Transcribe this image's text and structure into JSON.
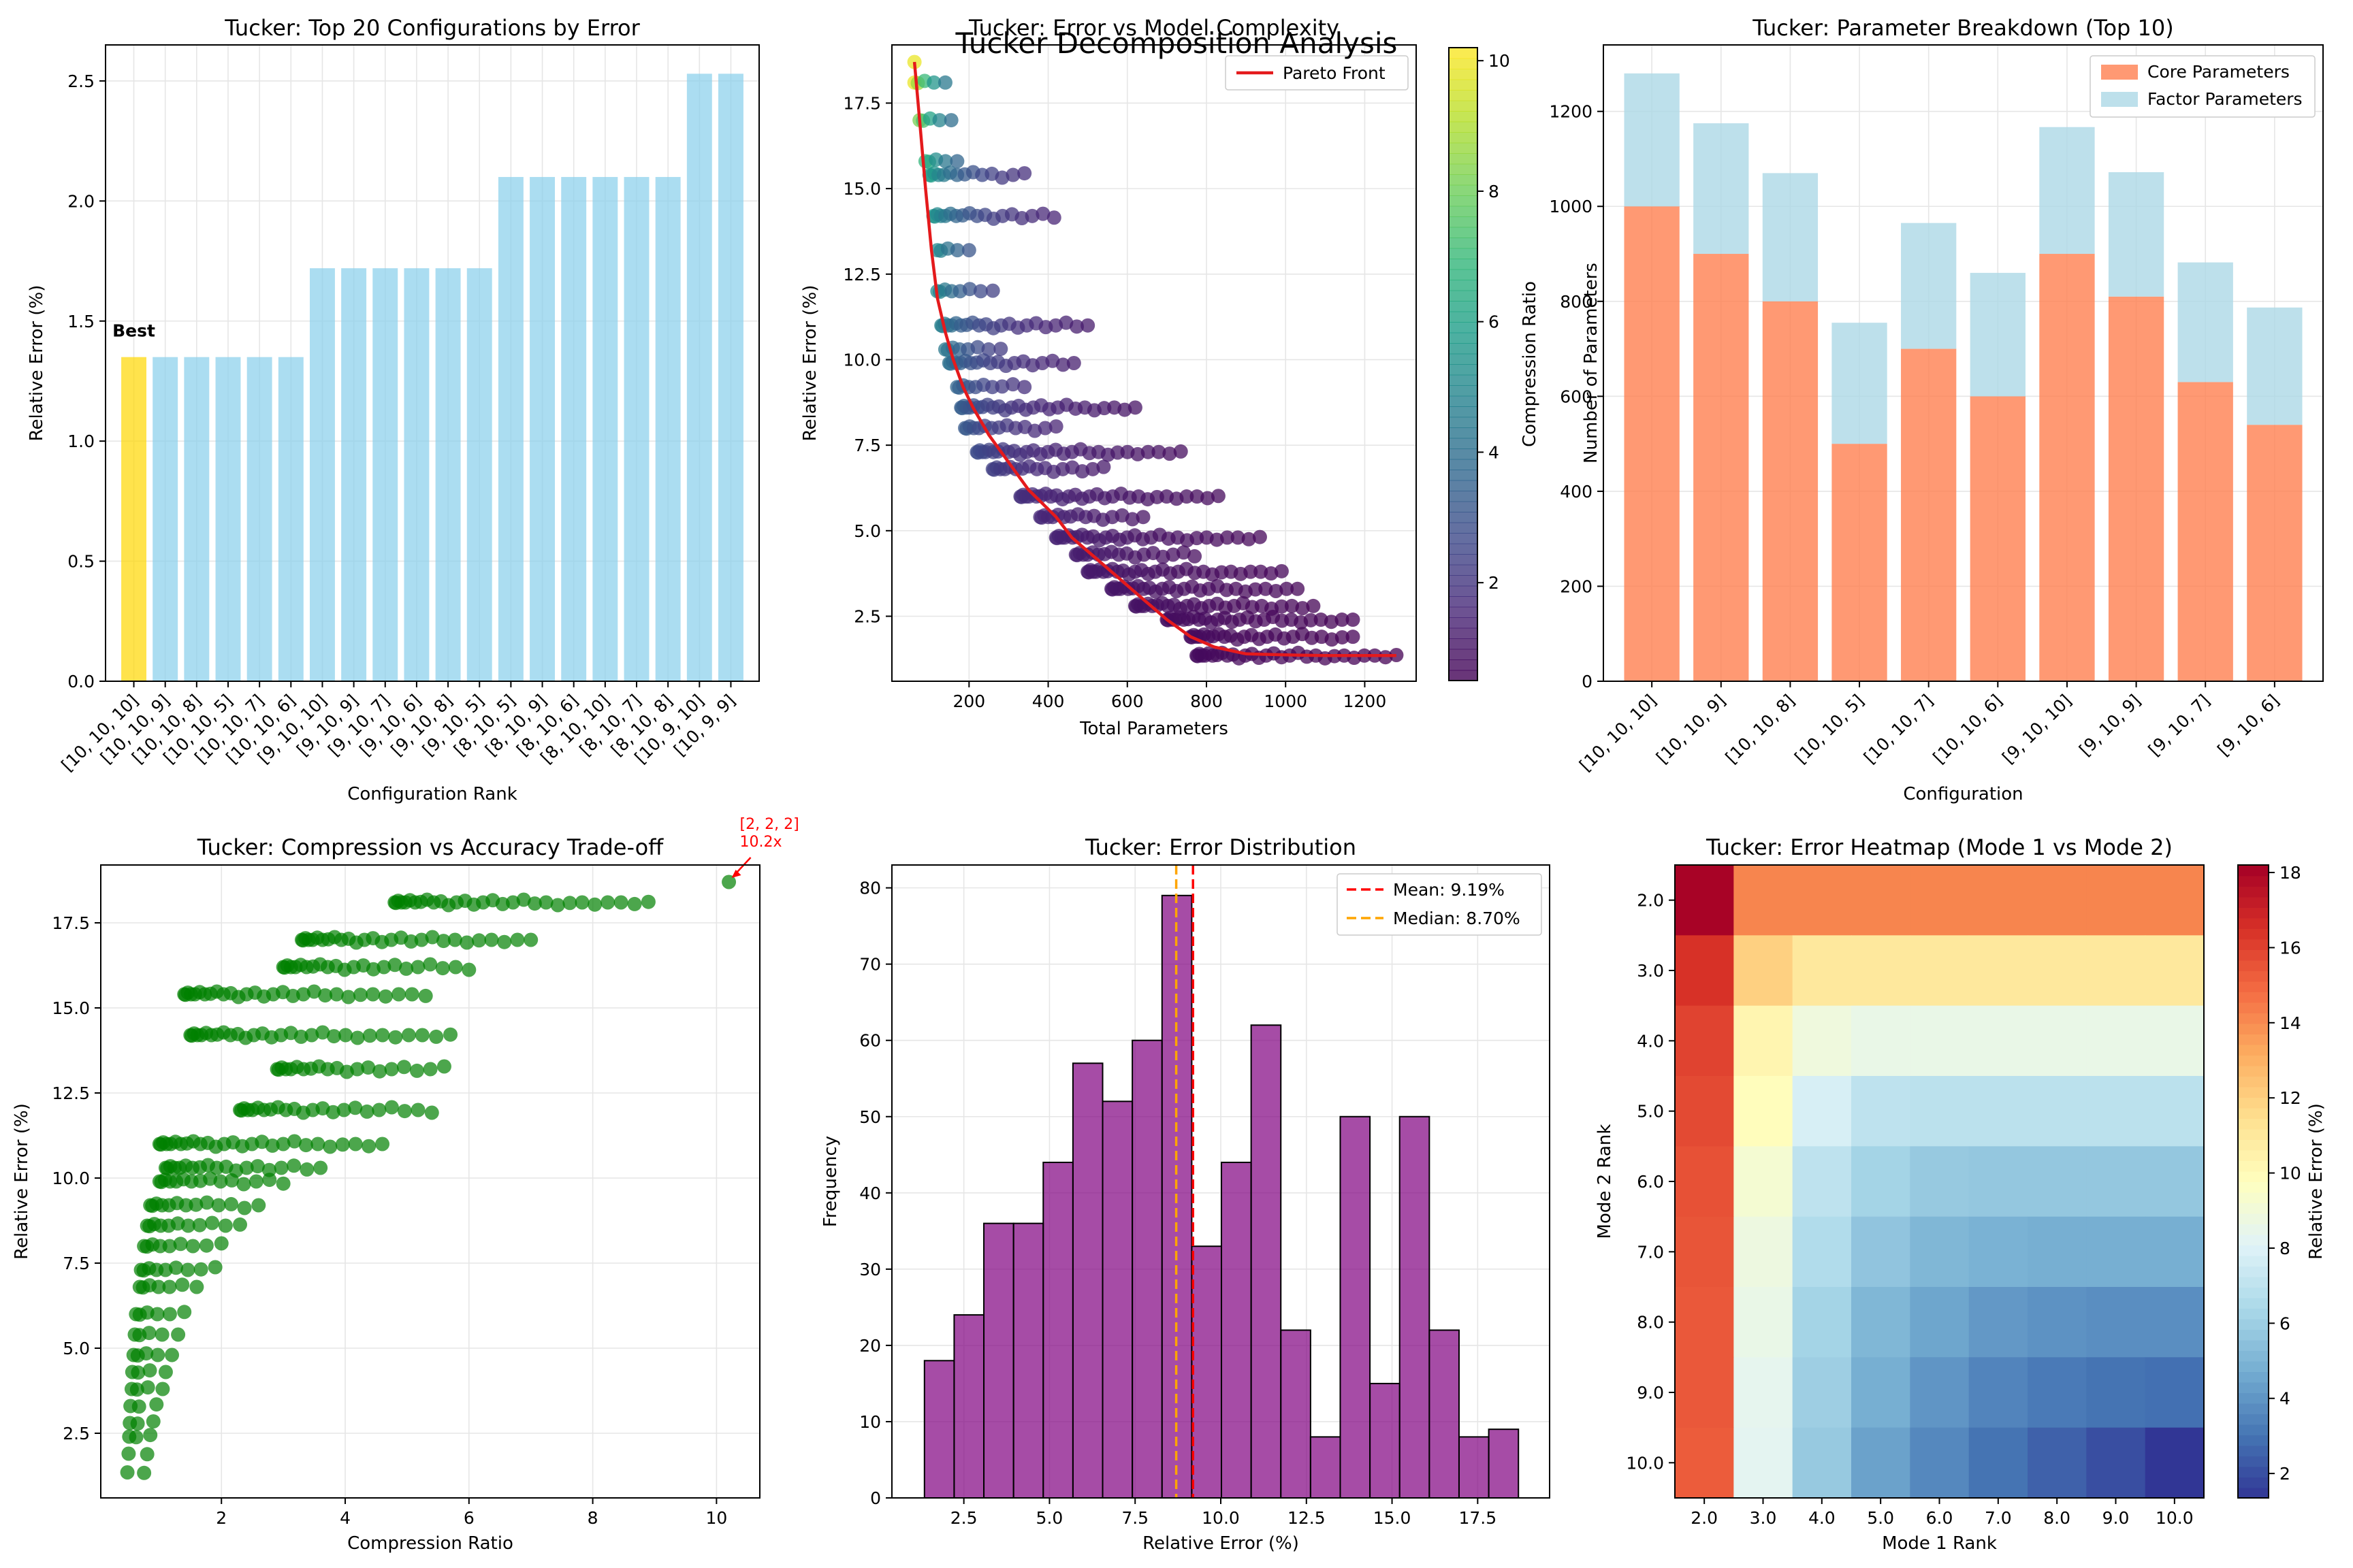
{
  "figure": {
    "suptitle": "Tucker Decomposition Analysis"
  },
  "colors": {
    "sky": "#87ceeb",
    "gold": "#ffd700",
    "red": "#ff0000",
    "orange": "#ffa500",
    "coral": "#ff7f50",
    "lightblue": "#add8e6",
    "green": "#008000",
    "purple": "#800080",
    "grid": "#e6e6e6"
  },
  "chart_data": [
    {
      "id": "top20",
      "type": "bar",
      "title": "Tucker: Top 20 Configurations by Error",
      "xlabel": "Configuration Rank",
      "ylabel": "Relative Error (%)",
      "ylim": [
        0,
        2.65
      ],
      "yticks": [
        0.0,
        0.5,
        1.0,
        1.5,
        2.0,
        2.5
      ],
      "categories": [
        "[10, 10, 10]",
        "[10, 10, 9]",
        "[10, 10, 8]",
        "[10, 10, 5]",
        "[10, 10, 7]",
        "[10, 10, 6]",
        "[9, 10, 10]",
        "[9, 10, 9]",
        "[9, 10, 7]",
        "[9, 10, 6]",
        "[9, 10, 8]",
        "[9, 10, 5]",
        "[8, 10, 5]",
        "[8, 10, 9]",
        "[8, 10, 6]",
        "[8, 10, 10]",
        "[8, 10, 7]",
        "[8, 10, 8]",
        "[10, 9, 10]",
        "[10, 9, 9]"
      ],
      "values": [
        1.35,
        1.35,
        1.35,
        1.35,
        1.35,
        1.35,
        1.72,
        1.72,
        1.72,
        1.72,
        1.72,
        1.72,
        2.1,
        2.1,
        2.1,
        2.1,
        2.1,
        2.1,
        2.53,
        2.53
      ],
      "highlight_index": 0,
      "annotation": "Best"
    },
    {
      "id": "complexity",
      "type": "scatter",
      "title": "Tucker: Error vs Model Complexity",
      "xlabel": "Total Parameters",
      "ylabel": "Relative Error (%)",
      "xlim": [
        5,
        1330
      ],
      "ylim": [
        0.6,
        19.2
      ],
      "xticks": [
        200,
        400,
        600,
        800,
        1000,
        1200
      ],
      "yticks": [
        2.5,
        5.0,
        7.5,
        10.0,
        12.5,
        15.0,
        17.5
      ],
      "colorbar": {
        "label": "Compression Ratio",
        "min": 0.5,
        "max": 10.2,
        "ticks": [
          2,
          4,
          6,
          8,
          10
        ]
      },
      "legend": {
        "position": "top-right",
        "entries": [
          "Pareto Front"
        ]
      },
      "bands": [
        {
          "y": 18.1,
          "x0": 62,
          "x1": 140
        },
        {
          "y": 17.0,
          "x0": 75,
          "x1": 155
        },
        {
          "y": 15.8,
          "x0": 90,
          "x1": 170
        },
        {
          "y": 15.4,
          "x0": 100,
          "x1": 340
        },
        {
          "y": 14.2,
          "x0": 110,
          "x1": 415
        },
        {
          "y": 13.2,
          "x0": 120,
          "x1": 200
        },
        {
          "y": 12.0,
          "x0": 120,
          "x1": 260
        },
        {
          "y": 11.0,
          "x0": 130,
          "x1": 500
        },
        {
          "y": 10.3,
          "x0": 140,
          "x1": 280
        },
        {
          "y": 9.9,
          "x0": 150,
          "x1": 465
        },
        {
          "y": 9.2,
          "x0": 170,
          "x1": 340
        },
        {
          "y": 8.6,
          "x0": 180,
          "x1": 620
        },
        {
          "y": 8.0,
          "x0": 190,
          "x1": 420
        },
        {
          "y": 7.3,
          "x0": 220,
          "x1": 735
        },
        {
          "y": 6.8,
          "x0": 260,
          "x1": 540
        },
        {
          "y": 6.0,
          "x0": 330,
          "x1": 830
        },
        {
          "y": 5.4,
          "x0": 380,
          "x1": 640
        },
        {
          "y": 4.8,
          "x0": 420,
          "x1": 935
        },
        {
          "y": 4.3,
          "x0": 470,
          "x1": 770
        },
        {
          "y": 3.8,
          "x0": 500,
          "x1": 990
        },
        {
          "y": 3.3,
          "x0": 560,
          "x1": 1030
        },
        {
          "y": 2.8,
          "x0": 620,
          "x1": 1070
        },
        {
          "y": 2.4,
          "x0": 700,
          "x1": 1170
        },
        {
          "y": 1.9,
          "x0": 760,
          "x1": 1170
        },
        {
          "y": 1.35,
          "x0": 775,
          "x1": 1280
        }
      ],
      "pareto": [
        [
          62,
          18.7
        ],
        [
          75,
          17.0
        ],
        [
          90,
          15.0
        ],
        [
          105,
          13.2
        ],
        [
          120,
          11.8
        ],
        [
          140,
          10.8
        ],
        [
          160,
          10.0
        ],
        [
          185,
          9.2
        ],
        [
          210,
          8.6
        ],
        [
          250,
          7.8
        ],
        [
          300,
          7.0
        ],
        [
          350,
          6.2
        ],
        [
          420,
          5.4
        ],
        [
          460,
          4.8
        ],
        [
          520,
          4.2
        ],
        [
          580,
          3.6
        ],
        [
          640,
          3.0
        ],
        [
          700,
          2.4
        ],
        [
          760,
          1.9
        ],
        [
          820,
          1.6
        ],
        [
          900,
          1.4
        ],
        [
          1000,
          1.37
        ],
        [
          1100,
          1.35
        ],
        [
          1280,
          1.35
        ]
      ]
    },
    {
      "id": "params",
      "type": "bar",
      "title": "Tucker: Parameter Breakdown (Top 10)",
      "xlabel": "Configuration",
      "ylabel": "Number of Parameters",
      "ylim": [
        0,
        1340
      ],
      "yticks": [
        0,
        200,
        400,
        600,
        800,
        1000,
        1200
      ],
      "legend": {
        "position": "top-right"
      },
      "categories": [
        "[10, 10, 10]",
        "[10, 10, 9]",
        "[10, 10, 8]",
        "[10, 10, 5]",
        "[10, 10, 7]",
        "[10, 10, 6]",
        "[9, 10, 10]",
        "[9, 10, 9]",
        "[9, 10, 7]",
        "[9, 10, 6]"
      ],
      "series": [
        {
          "name": "Core Parameters",
          "values": [
            1000,
            900,
            800,
            500,
            700,
            600,
            900,
            810,
            630,
            540
          ]
        },
        {
          "name": "Factor Parameters",
          "values": [
            280,
            275,
            270,
            255,
            265,
            260,
            267,
            262,
            252,
            247
          ]
        }
      ]
    },
    {
      "id": "tradeoff",
      "type": "scatter",
      "title": "Tucker: Compression vs Accuracy Trade-off",
      "xlabel": "Compression Ratio",
      "ylabel": "Relative Error (%)",
      "xlim": [
        0.05,
        10.7
      ],
      "ylim": [
        0.6,
        19.2
      ],
      "xticks": [
        2,
        4,
        6,
        8,
        10
      ],
      "yticks": [
        2.5,
        5.0,
        7.5,
        10.0,
        12.5,
        15.0,
        17.5
      ],
      "annotation": {
        "text": [
          "[2, 2, 2]",
          "10.2x"
        ],
        "x": 10.2,
        "y": 18.7
      },
      "bands": [
        {
          "y": 18.1,
          "x0": 4.8,
          "x1": 8.9
        },
        {
          "y": 17.0,
          "x0": 3.3,
          "x1": 7.0
        },
        {
          "y": 16.2,
          "x0": 3.0,
          "x1": 6.0
        },
        {
          "y": 15.4,
          "x0": 1.4,
          "x1": 5.3
        },
        {
          "y": 14.2,
          "x0": 1.5,
          "x1": 5.7
        },
        {
          "y": 13.2,
          "x0": 2.9,
          "x1": 5.6
        },
        {
          "y": 12.0,
          "x0": 2.3,
          "x1": 5.4
        },
        {
          "y": 11.0,
          "x0": 1.0,
          "x1": 4.6
        },
        {
          "y": 10.3,
          "x0": 1.1,
          "x1": 3.6
        },
        {
          "y": 9.9,
          "x0": 1.0,
          "x1": 3.0
        },
        {
          "y": 9.2,
          "x0": 0.85,
          "x1": 2.6
        },
        {
          "y": 8.6,
          "x0": 0.8,
          "x1": 2.3
        },
        {
          "y": 8.0,
          "x0": 0.75,
          "x1": 2.0
        },
        {
          "y": 7.3,
          "x0": 0.7,
          "x1": 1.9
        },
        {
          "y": 6.8,
          "x0": 0.68,
          "x1": 1.6
        },
        {
          "y": 6.0,
          "x0": 0.62,
          "x1": 1.4
        },
        {
          "y": 5.4,
          "x0": 0.6,
          "x1": 1.3
        },
        {
          "y": 4.8,
          "x0": 0.58,
          "x1": 1.2
        },
        {
          "y": 4.3,
          "x0": 0.56,
          "x1": 1.1
        },
        {
          "y": 3.8,
          "x0": 0.55,
          "x1": 1.05
        },
        {
          "y": 3.3,
          "x0": 0.53,
          "x1": 0.95
        },
        {
          "y": 2.8,
          "x0": 0.52,
          "x1": 0.9
        },
        {
          "y": 2.4,
          "x0": 0.51,
          "x1": 0.85
        },
        {
          "y": 1.9,
          "x0": 0.5,
          "x1": 0.8
        },
        {
          "y": 1.35,
          "x0": 0.48,
          "x1": 0.75
        }
      ]
    },
    {
      "id": "distribution",
      "type": "bar",
      "title": "Tucker: Error Distribution",
      "xlabel": "Relative Error (%)",
      "ylabel": "Frequency",
      "xlim": [
        0.4,
        19.6
      ],
      "ylim": [
        0,
        83
      ],
      "xticks": [
        2.5,
        5.0,
        7.5,
        10.0,
        12.5,
        15.0,
        17.5
      ],
      "yticks": [
        0,
        10,
        20,
        30,
        40,
        50,
        60,
        70,
        80
      ],
      "bin_start": 1.35,
      "bin_width": 0.867,
      "counts": [
        18,
        24,
        36,
        36,
        44,
        57,
        52,
        60,
        79,
        33,
        44,
        62,
        22,
        8,
        50,
        15,
        50,
        22,
        8,
        9
      ],
      "mean": {
        "value": 9.19,
        "label": "Mean: 9.19%"
      },
      "median": {
        "value": 8.7,
        "label": "Median: 8.70%"
      },
      "legend": {
        "position": "top-right"
      }
    },
    {
      "id": "heatmap",
      "type": "heatmap",
      "title": "Tucker: Error Heatmap (Mode 1 vs Mode 2)",
      "xlabel": "Mode 1 Rank",
      "ylabel": "Mode 2 Rank",
      "xticks": [
        "2.0",
        "3.0",
        "4.0",
        "5.0",
        "6.0",
        "7.0",
        "8.0",
        "9.0",
        "10.0"
      ],
      "yticks": [
        "2.0",
        "3.0",
        "4.0",
        "5.0",
        "6.0",
        "7.0",
        "8.0",
        "9.0",
        "10.0"
      ],
      "colorbar": {
        "label": "Relative Error (%)",
        "min": 1.35,
        "max": 18.2,
        "ticks": [
          2,
          4,
          6,
          8,
          10,
          12,
          14,
          16,
          18
        ]
      },
      "values": [
        [
          18.1,
          14.2,
          14.2,
          14.2,
          14.2,
          14.2,
          14.2,
          14.2,
          14.2
        ],
        [
          16.5,
          12.0,
          11.0,
          11.0,
          11.0,
          11.0,
          11.0,
          11.0,
          11.0
        ],
        [
          16.0,
          10.3,
          8.9,
          8.6,
          8.6,
          8.6,
          8.6,
          8.6,
          8.6
        ],
        [
          15.8,
          9.9,
          7.8,
          7.0,
          6.9,
          6.9,
          6.9,
          6.9,
          6.9
        ],
        [
          15.6,
          9.2,
          7.0,
          6.2,
          5.8,
          5.7,
          5.7,
          5.7,
          5.7
        ],
        [
          15.5,
          8.8,
          6.6,
          5.6,
          5.1,
          4.9,
          4.8,
          4.8,
          4.8
        ],
        [
          15.4,
          8.6,
          6.2,
          5.1,
          4.5,
          4.1,
          3.9,
          3.8,
          3.8
        ],
        [
          15.4,
          8.4,
          6.0,
          4.8,
          4.0,
          3.5,
          3.2,
          3.0,
          2.9
        ],
        [
          15.3,
          8.3,
          5.8,
          4.4,
          3.6,
          3.0,
          2.5,
          2.0,
          1.35
        ]
      ]
    }
  ]
}
